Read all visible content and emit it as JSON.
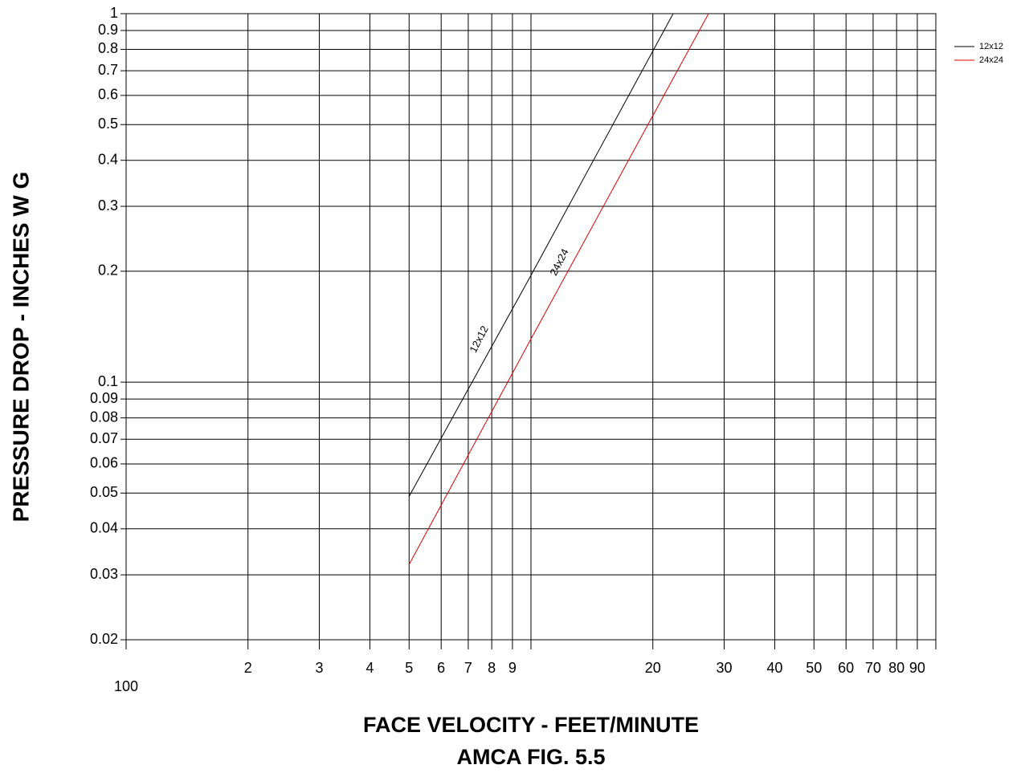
{
  "chart_data": {
    "type": "line",
    "title": "FACE VELOCITY - FEET/MINUTE",
    "subtitle": "AMCA FIG. 5.5",
    "y_label": "PRESSURE DROP - INCHES W G",
    "x_log": true,
    "y_log": true,
    "grid": true,
    "legend": "top-right",
    "xlim": [
      100,
      10000
    ],
    "ylim": [
      0.02,
      1
    ],
    "xticks": [
      100,
      {
        "value": 200,
        "label": "2"
      },
      {
        "value": 300,
        "label": "3"
      },
      {
        "value": 400,
        "label": "4"
      },
      {
        "value": 500,
        "label": "5"
      },
      {
        "value": 600,
        "label": "6"
      },
      {
        "value": 700,
        "label": "7"
      },
      {
        "value": 800,
        "label": "8"
      },
      {
        "value": 900,
        "label": "9"
      },
      {
        "value": 2000,
        "label": "20"
      },
      {
        "value": 3000,
        "label": "30"
      },
      {
        "value": 4000,
        "label": "40"
      },
      {
        "value": 5000,
        "label": "50"
      },
      {
        "value": 6000,
        "label": "60"
      },
      {
        "value": 7000,
        "label": "70"
      },
      {
        "value": 8000,
        "label": "80"
      },
      {
        "value": 9000,
        "label": "90"
      }
    ],
    "yticks": [
      0.02,
      0.03,
      0.04,
      0.05,
      0.06,
      0.07,
      0.08,
      0.09,
      0.1,
      0.2,
      0.3,
      0.4,
      0.5,
      0.6,
      0.7,
      0.8,
      0.9,
      1
    ],
    "series": [
      {
        "name": "12x12",
        "color": "#000000",
        "x": [
          500,
          1000,
          2245
        ],
        "values": [
          0.049,
          0.195,
          1
        ]
      },
      {
        "name": "24x24",
        "color": "#e00000",
        "x": [
          500,
          1000,
          2745
        ],
        "values": [
          0.032,
          0.131,
          1
        ]
      }
    ],
    "annotations": [
      {
        "text": "12x12"
      },
      {
        "text": "24x24"
      }
    ]
  }
}
